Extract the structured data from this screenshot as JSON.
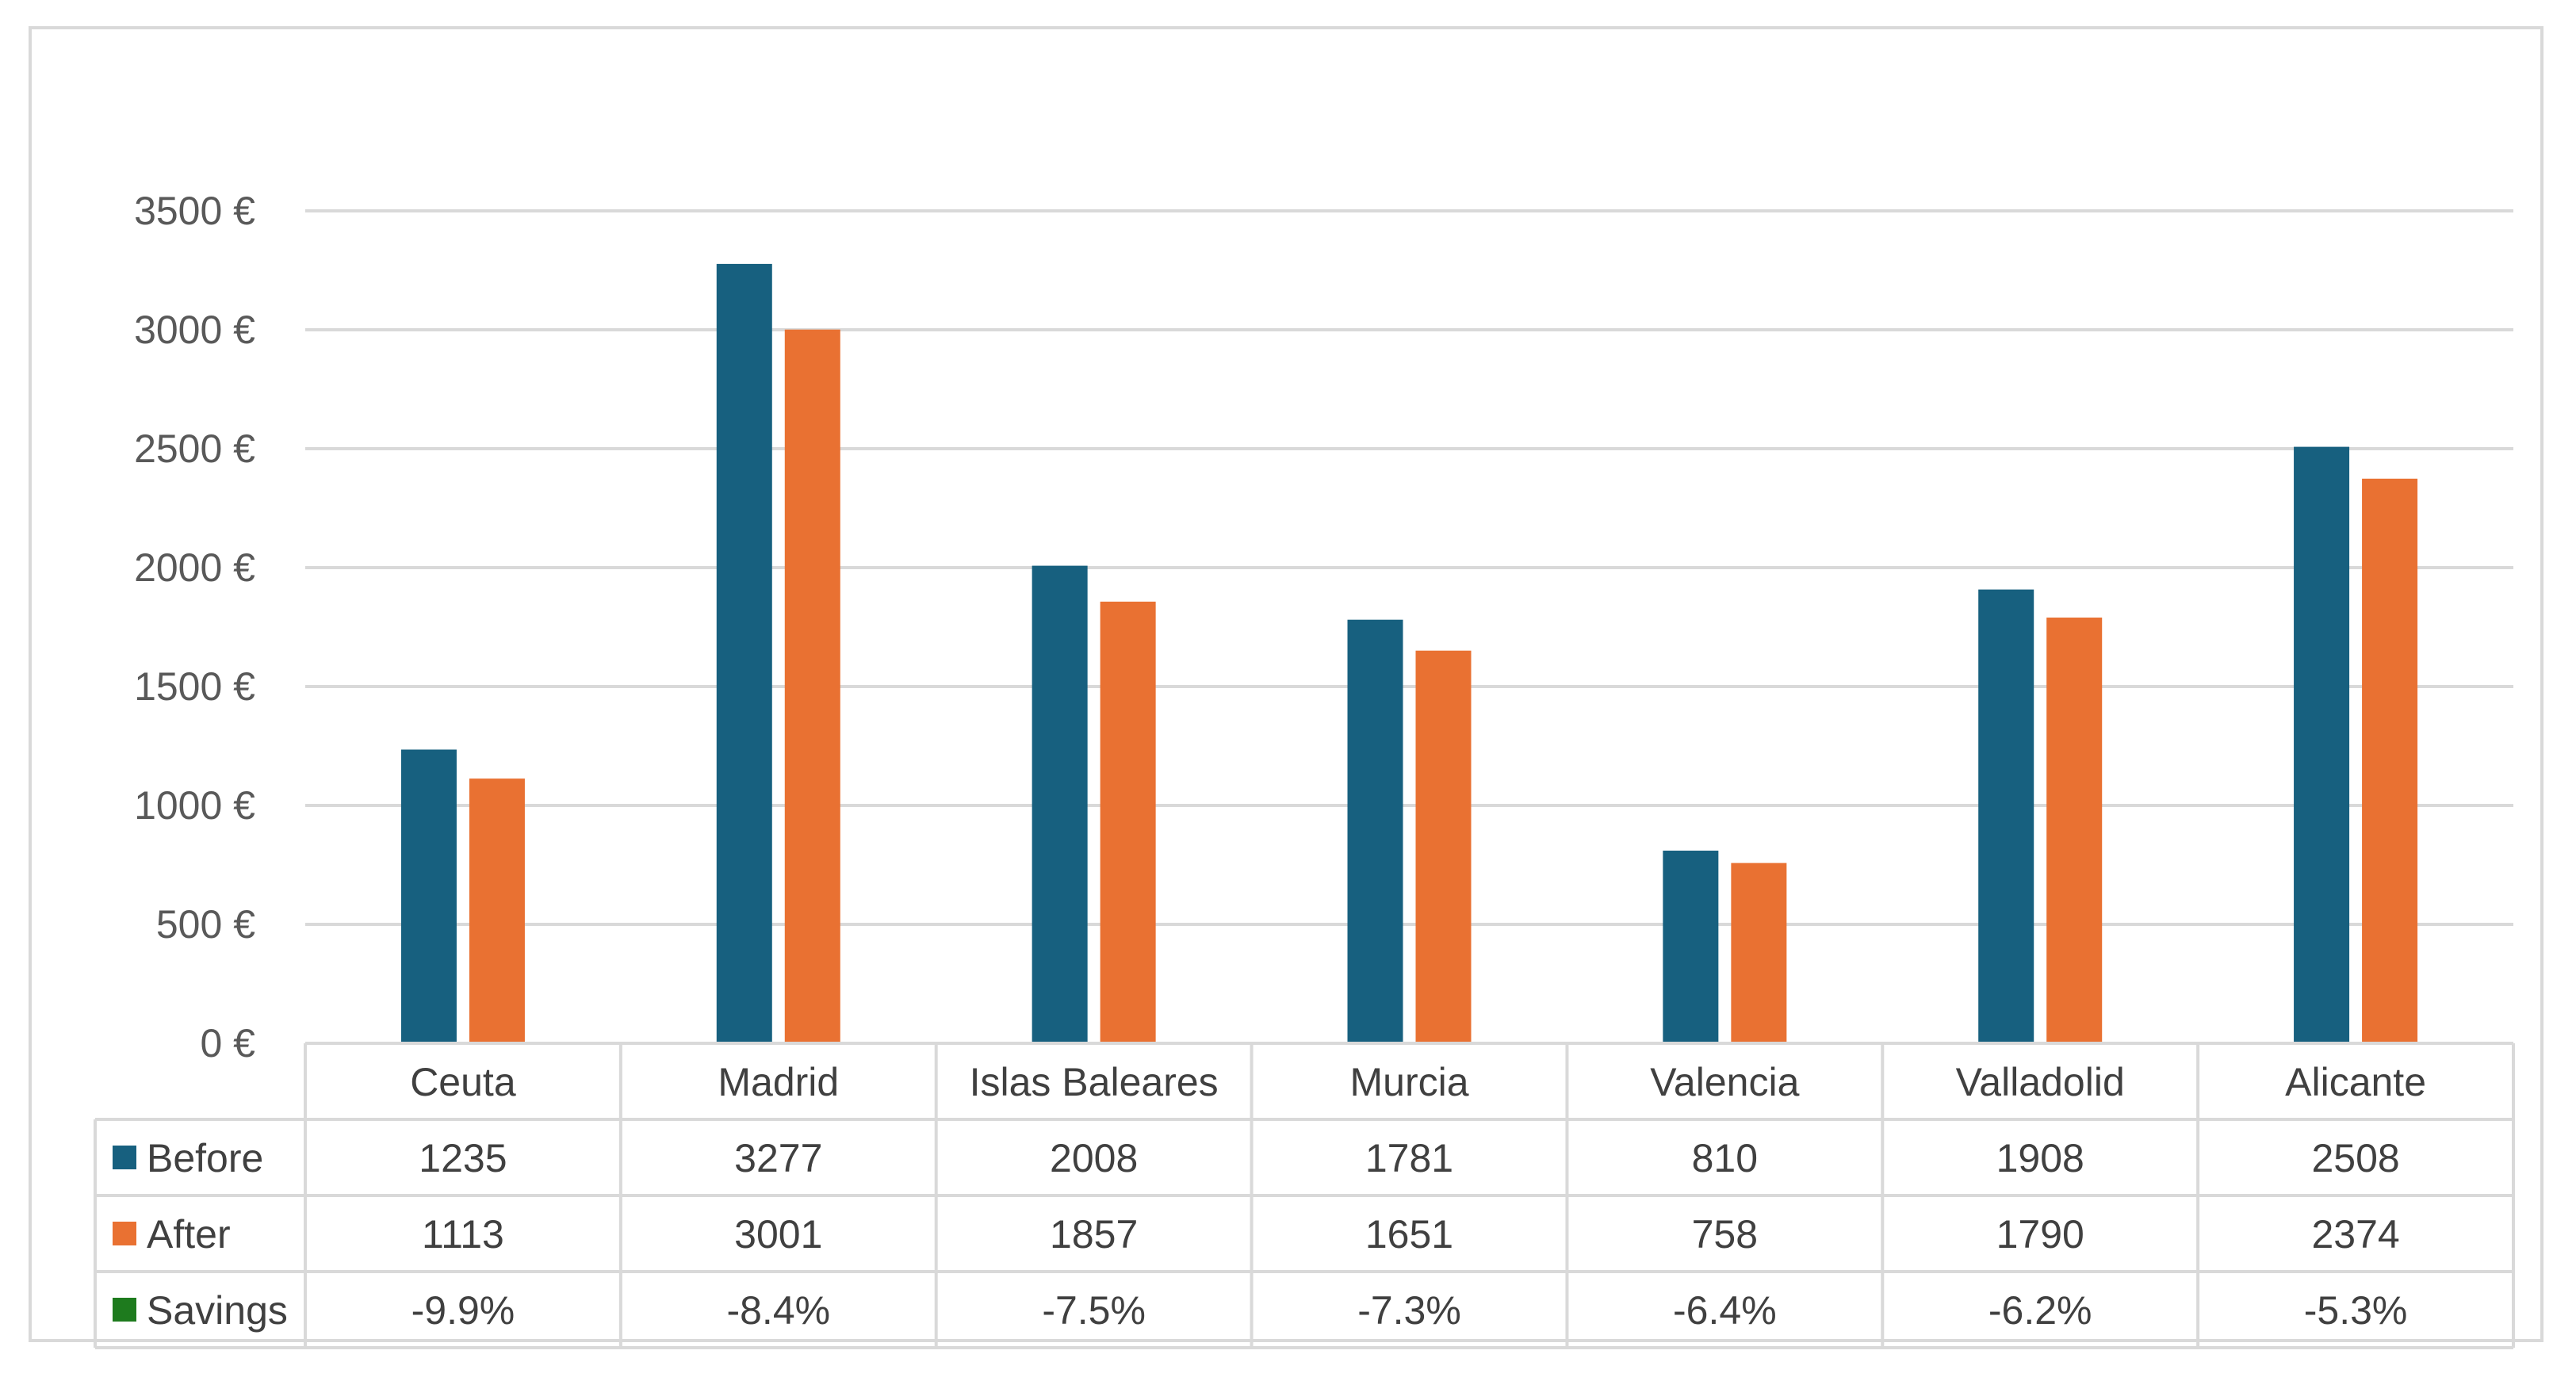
{
  "chart_data": {
    "type": "bar",
    "title": "",
    "xlabel": "",
    "ylabel": "",
    "categories": [
      "Ceuta",
      "Madrid",
      "Islas Baleares",
      "Murcia",
      "Valencia",
      "Valladolid",
      "Alicante"
    ],
    "series": [
      {
        "name": "Before",
        "color": "#17607f",
        "values": [
          1235,
          3277,
          2008,
          1781,
          810,
          1908,
          2508
        ]
      },
      {
        "name": "After",
        "color": "#e97132",
        "values": [
          1113,
          3001,
          1857,
          1651,
          758,
          1790,
          2374
        ]
      }
    ],
    "table_rows": [
      {
        "name": "Savings",
        "color": "#1e7b1e",
        "values": [
          "-9.9%",
          "-8.4%",
          "-7.5%",
          "-7.3%",
          "-6.4%",
          "-6.2%",
          "-5.3%"
        ]
      }
    ],
    "ylim": [
      0,
      3500
    ],
    "yticks": [
      0,
      500,
      1000,
      1500,
      2000,
      2500,
      3000,
      3500
    ],
    "ytick_labels": [
      "0 €",
      "500 €",
      "1000 €",
      "1500 €",
      "2000 €",
      "2500 €",
      "3000 €",
      "3500 €"
    ],
    "grid": true,
    "legend": "data-table"
  }
}
